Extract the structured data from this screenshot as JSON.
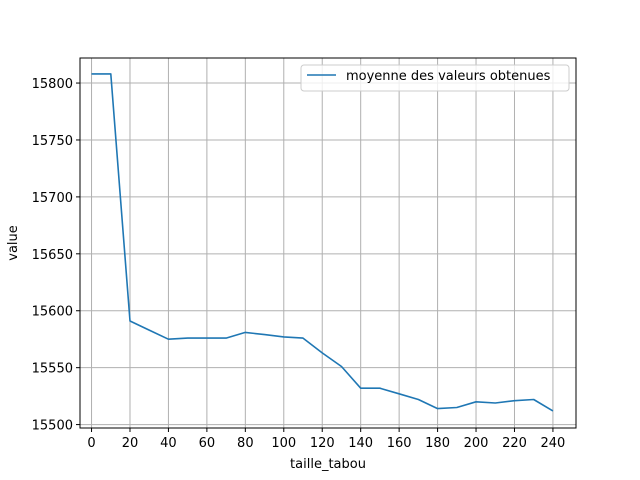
{
  "chart_data": {
    "type": "line",
    "title": "",
    "xlabel": "taille_tabou",
    "ylabel": "value",
    "xlim": [
      -6,
      252
    ],
    "ylim": [
      15497,
      15822
    ],
    "xticks": [
      0,
      20,
      40,
      60,
      80,
      100,
      120,
      140,
      160,
      180,
      200,
      220,
      240
    ],
    "yticks": [
      15500,
      15550,
      15600,
      15650,
      15700,
      15750,
      15800
    ],
    "grid": true,
    "legend_position": "top-right",
    "series": [
      {
        "name": "moyenne des valeurs obtenues",
        "color": "#1f77b4",
        "x": [
          0,
          10,
          20,
          30,
          40,
          50,
          60,
          70,
          80,
          90,
          100,
          110,
          120,
          130,
          140,
          150,
          160,
          170,
          180,
          190,
          200,
          210,
          220,
          230,
          240
        ],
        "y": [
          15808,
          15808,
          15591,
          15583,
          15575,
          15576,
          15576,
          15576,
          15581,
          15579,
          15577,
          15576,
          15563,
          15551,
          15532,
          15532,
          15527,
          15522,
          15514,
          15515,
          15520,
          15519,
          15521,
          15522,
          15512
        ]
      }
    ]
  }
}
